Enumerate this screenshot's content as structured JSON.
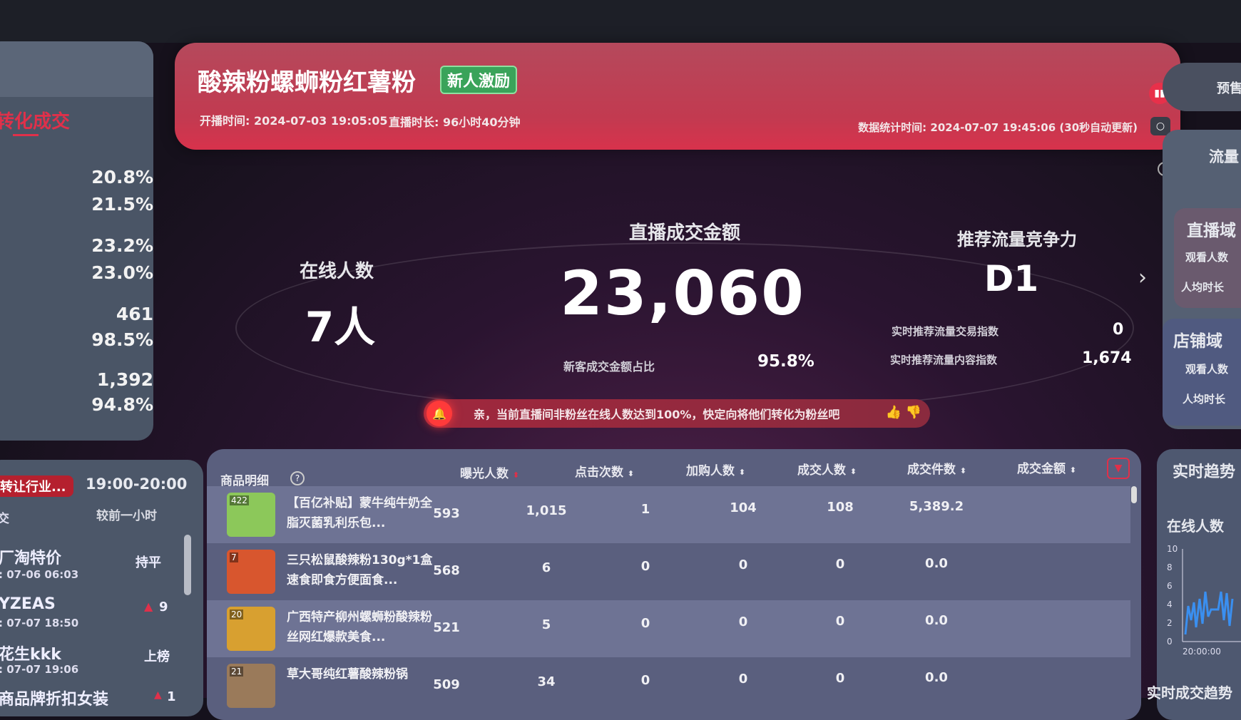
{
  "left_panel": {
    "tab_label": "转化成交",
    "values": [
      "20.8%",
      "21.5%",
      "23.2%",
      "23.0%",
      "461",
      "98.5%",
      "1,392",
      "94.8%"
    ]
  },
  "left_list": {
    "tag": "转让行业...",
    "time_range": "19:00-20:00",
    "col_left": "交",
    "col_right": "较前一小时",
    "items": [
      {
        "name": "厂淘特价",
        "time": ": 07-06 06:03",
        "change": "持平"
      },
      {
        "name": "YZEAS",
        "time": ": 07-07 18:50",
        "change": "9"
      },
      {
        "name": "花生kkk",
        "time": ": 07-07 19:06",
        "change": "上榜"
      },
      {
        "name": "商品牌折扣女装",
        "time": "",
        "change": "1"
      }
    ]
  },
  "header": {
    "title": "酸辣粉螺蛳粉红薯粉",
    "badge": "新人激励",
    "start_time": "开播时间: 2024-07-03 19:05:05",
    "duration": "直播时长: 96小时40分钟",
    "stat_time": "数据统计时间: 2024-07-07 19:45:06 (30秒自动更新)"
  },
  "metrics": {
    "online_label": "在线人数",
    "online_value": "7人",
    "gmv_label": "直播成交金额",
    "gmv_value": "23,060",
    "new_customer_label": "新客成交金额占比",
    "new_customer_value": "95.8%",
    "rec_label": "推荐流量竞争力",
    "rec_value": "D1",
    "rec_trade_label": "实时推荐流量交易指数",
    "rec_trade_value": "0",
    "rec_content_label": "实时推荐流量内容指数",
    "rec_content_value": "1,674"
  },
  "alert": {
    "text": "亲，当前直播间非粉丝在线人数达到100%，快定向将他们转化为粉丝吧"
  },
  "table": {
    "title": "商品明细",
    "columns": [
      "曝光人数",
      "点击次数",
      "加购人数",
      "成交人数",
      "成交件数",
      "成交金额"
    ],
    "rows": [
      {
        "rank": "422",
        "name": "【百亿补贴】蒙牛纯牛奶全脂灭菌乳利乐包...",
        "values": [
          "593",
          "1,015",
          "1",
          "104",
          "108",
          "5,389.2"
        ],
        "thumb": "#8cc85a"
      },
      {
        "rank": "7",
        "name": "三只松鼠酸辣粉130g*1盒速食即食方便面食...",
        "values": [
          "568",
          "6",
          "0",
          "0",
          "0",
          "0.0"
        ],
        "thumb": "#d8562e"
      },
      {
        "rank": "20",
        "name": "广西特产柳州螺蛳粉酸辣粉丝网红爆款美食...",
        "values": [
          "521",
          "5",
          "0",
          "0",
          "0",
          "0.0"
        ],
        "thumb": "#d8a030"
      },
      {
        "rank": "21",
        "name": "草大哥纯红薯酸辣粉锅",
        "values": [
          "509",
          "34",
          "0",
          "0",
          "0",
          "0.0"
        ],
        "thumb": "#9a7a5a"
      }
    ]
  },
  "right": {
    "presale": "预售",
    "traffic_title": "流量",
    "live_domain": "直播域",
    "shop_domain": "店铺域",
    "watch": "观看人数",
    "avg_time": "人均时长",
    "trend_title": "实时趋势",
    "online_label": "在线人数",
    "y_ticks": [
      "10",
      "8",
      "6",
      "4",
      "2",
      "0"
    ],
    "x_tick": "20:00:00",
    "deal_trend": "实时成交趋势"
  },
  "colors": {
    "accent": "#e0304a",
    "badge": "#3aa35a",
    "chart_line": "#3a8ff0"
  }
}
